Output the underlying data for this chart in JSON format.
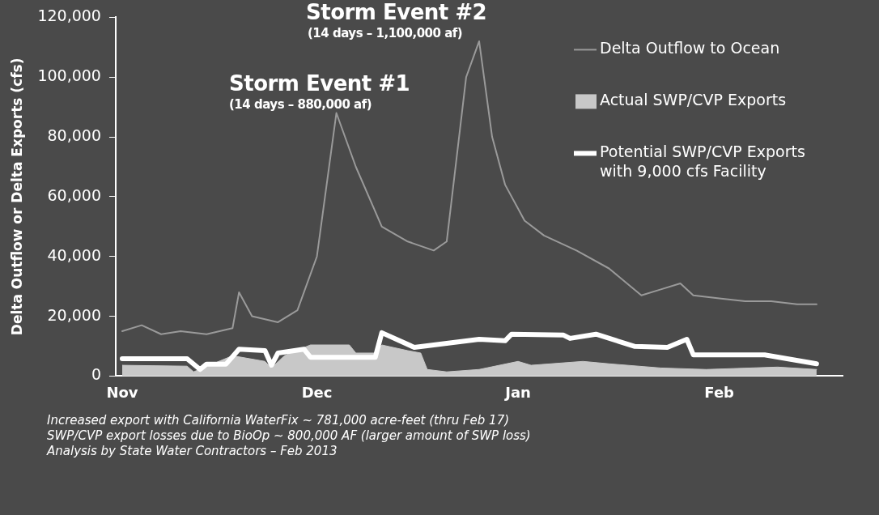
{
  "chart_data": {
    "type": "line",
    "ylabel": "Delta Outflow or Delta Exports (cfs)",
    "xlim": [
      "2012-10-31",
      "2013-02-20"
    ],
    "xticks": [
      {
        "value": "2012-11-01",
        "label": "Nov"
      },
      {
        "value": "2012-12-01",
        "label": "Dec"
      },
      {
        "value": "2013-01-01",
        "label": "Jan"
      },
      {
        "value": "2013-02-01",
        "label": "Feb"
      }
    ],
    "ylim": [
      0,
      120000
    ],
    "yticks": [
      0,
      {
        "value": 20000,
        "label": "20,000"
      },
      {
        "value": 40000,
        "label": "40,000"
      },
      {
        "value": 60000,
        "label": "60,000"
      },
      {
        "value": 80000,
        "label": "80,000"
      },
      {
        "value": 100000,
        "label": "100,000"
      },
      {
        "value": 120000,
        "label": "120,000"
      }
    ],
    "legend": "top right",
    "series": [
      {
        "name": "Actual SWP/CVP Exports",
        "type": "area",
        "color": "#c8c8c8",
        "x": [
          "2012-11-01",
          "2012-11-11",
          "2012-11-12",
          "2012-11-18",
          "2012-11-23",
          "2012-11-24",
          "2012-11-26",
          "2012-11-30",
          "2012-12-06",
          "2012-12-07",
          "2012-12-10",
          "2012-12-11",
          "2012-12-15",
          "2012-12-17",
          "2012-12-18",
          "2012-12-21",
          "2012-12-26",
          "2013-01-01",
          "2013-01-03",
          "2013-01-11",
          "2013-01-15",
          "2013-01-23",
          "2013-01-30",
          "2013-02-10",
          "2013-02-16"
        ],
        "values": [
          3600,
          3300,
          1400,
          6800,
          4900,
          2700,
          6800,
          10400,
          10400,
          7700,
          7700,
          10400,
          8500,
          7700,
          2200,
          1400,
          2200,
          4900,
          3600,
          4900,
          4100,
          2700,
          2200,
          3000,
          2200
        ]
      },
      {
        "name": "Delta Outflow to Ocean",
        "type": "line",
        "color": "#9a9a9a",
        "x": [
          "2012-11-01",
          "2012-11-04",
          "2012-11-07",
          "2012-11-10",
          "2012-11-14",
          "2012-11-18",
          "2012-11-19",
          "2012-11-21",
          "2012-11-25",
          "2012-11-28",
          "2012-12-01",
          "2012-12-04",
          "2012-12-07",
          "2012-12-11",
          "2012-12-15",
          "2012-12-19",
          "2012-12-21",
          "2012-12-24",
          "2012-12-26",
          "2012-12-28",
          "2012-12-30",
          "2013-01-02",
          "2013-01-05",
          "2013-01-10",
          "2013-01-15",
          "2013-01-20",
          "2013-01-23",
          "2013-01-26",
          "2013-01-28",
          "2013-02-01",
          "2013-02-05",
          "2013-02-09",
          "2013-02-13",
          "2013-02-16"
        ],
        "values": [
          15000,
          17000,
          14000,
          15000,
          14000,
          16000,
          28000,
          20000,
          18000,
          22000,
          40000,
          88000,
          70000,
          50000,
          45000,
          42000,
          45000,
          100000,
          112000,
          80000,
          64000,
          52000,
          47000,
          42000,
          36000,
          27000,
          29000,
          31000,
          27000,
          26000,
          25000,
          25000,
          24000,
          24000
        ]
      },
      {
        "name": "Potential SWP/CVP Exports with 9,000 cfs Facility",
        "color": "#ffffff",
        "x": [
          "2012-11-01",
          "2012-11-11",
          "2012-11-13",
          "2012-11-14",
          "2012-11-17",
          "2012-11-19",
          "2012-11-23",
          "2012-11-24",
          "2012-11-25",
          "2012-11-29",
          "2012-11-30",
          "2012-12-10",
          "2012-12-11",
          "2012-12-16",
          "2012-12-26",
          "2012-12-30",
          "2012-12-31",
          "2013-01-08",
          "2013-01-09",
          "2013-01-13",
          "2013-01-19",
          "2013-01-24",
          "2013-01-27",
          "2013-01-28",
          "2013-02-08",
          "2013-02-16"
        ],
        "values": [
          5800,
          5800,
          2200,
          4000,
          4000,
          9000,
          8500,
          3600,
          7700,
          9000,
          6300,
          6300,
          14500,
          9600,
          12300,
          11800,
          14000,
          13700,
          12600,
          14000,
          9900,
          9600,
          12300,
          7100,
          7100,
          4100
        ]
      }
    ],
    "annotations": [
      "Storm Event #1",
      "(14 days – 880,000 af)",
      "Storm Event #2",
      "(14 days – 1,100,000 af)",
      "Increased export with California WaterFix ~ 781,000 acre-feet (thru Feb 17)",
      "SWP/CVP export losses due to BioOp ~ 800,000 AF (larger amount of SWP loss)",
      "Analysis by State Water Contractors – Feb 2013"
    ]
  }
}
